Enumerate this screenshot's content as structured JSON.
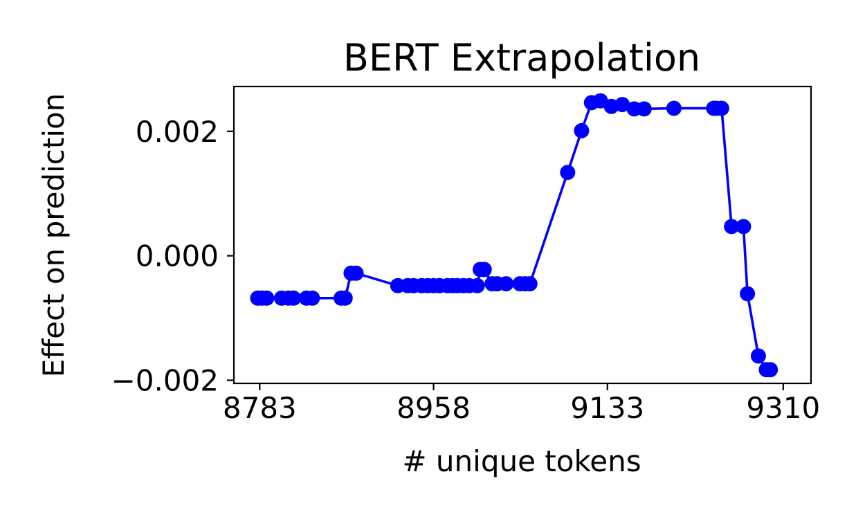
{
  "chart_data": {
    "type": "line",
    "title": "BERT Extrapolation",
    "xlabel": "# unique tokens",
    "ylabel": "Effect on prediction",
    "xlim": [
      8757,
      9338
    ],
    "ylim": [
      -0.00205,
      0.00272
    ],
    "xticks": [
      8783,
      8958,
      9133,
      9310
    ],
    "xtick_labels": [
      "8783",
      "8958",
      "9133",
      "9310"
    ],
    "yticks": [
      -0.002,
      0.0,
      0.002
    ],
    "ytick_labels": [
      "−0.002",
      "0.000",
      "0.002"
    ],
    "grid": false,
    "legend": "none",
    "series": [
      {
        "color": "#0000ff",
        "marker": "circle",
        "x": [
          8781,
          8785,
          8790,
          8805,
          8812,
          8817,
          8830,
          8836,
          8865,
          8869,
          8875,
          8880,
          8922,
          8932,
          8938,
          8946,
          8952,
          8958,
          8964,
          8972,
          8977,
          8982,
          8988,
          8994,
          9002,
          9005,
          9009,
          9017,
          9022,
          9031,
          9045,
          9050,
          9055,
          9093,
          9107,
          9117,
          9126,
          9137,
          9148,
          9160,
          9170,
          9200,
          9240,
          9243,
          9248,
          9258,
          9270,
          9274,
          9285,
          9293,
          9297
        ],
        "y": [
          -0.00068,
          -0.00068,
          -0.00068,
          -0.00068,
          -0.00068,
          -0.00068,
          -0.00068,
          -0.00068,
          -0.00068,
          -0.00068,
          -0.00028,
          -0.00028,
          -0.00048,
          -0.00048,
          -0.00048,
          -0.00048,
          -0.00048,
          -0.00048,
          -0.00048,
          -0.00048,
          -0.00048,
          -0.00048,
          -0.00048,
          -0.00048,
          -0.00048,
          -0.00022,
          -0.00022,
          -0.00045,
          -0.00045,
          -0.00045,
          -0.00045,
          -0.00045,
          -0.00045,
          0.00134,
          0.00201,
          0.00246,
          0.00249,
          0.0024,
          0.00243,
          0.00236,
          0.00236,
          0.00237,
          0.00237,
          0.00237,
          0.00237,
          0.00047,
          0.00047,
          -0.00061,
          -0.00161,
          -0.00183,
          -0.00183
        ]
      }
    ]
  }
}
